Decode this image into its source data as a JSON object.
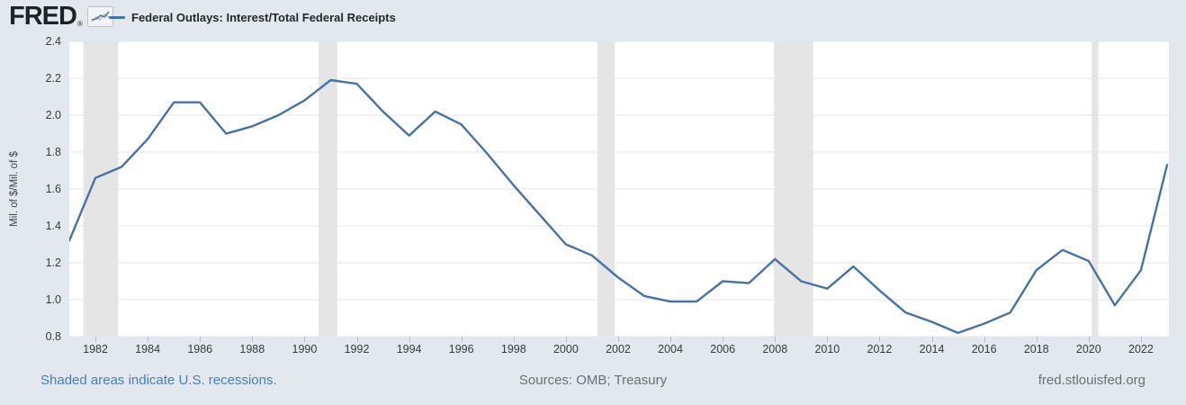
{
  "header": {
    "logo_text": "FRED",
    "registered_mark": "®",
    "legend": {
      "series_label": "Federal Outlays: Interest/Total Federal Receipts"
    }
  },
  "footer": {
    "recession_note": "Shaded areas indicate U.S. recessions.",
    "sources": "Sources: OMB; Treasury",
    "site_link": "fred.stlouisfed.org"
  },
  "colors": {
    "page_bg": "#e2e8ee",
    "plot_bg": "#ffffff",
    "line": "#4572a7",
    "grid": "#e4e4e4",
    "recession_band": "#e5e5e5",
    "footer_link": "#4a7cb8"
  },
  "chart_data": {
    "type": "line",
    "title": "Federal Outlays: Interest/Total Federal Receipts",
    "xlabel": "",
    "ylabel": "Mil. of $/Mil. of $",
    "ylim": [
      0.8,
      2.4
    ],
    "ytick_step": 0.2,
    "yticks": [
      2.4,
      2.2,
      2.0,
      1.8,
      1.6,
      1.4,
      1.2,
      1.0,
      0.8
    ],
    "xticks": [
      1982,
      1984,
      1986,
      1988,
      1990,
      1992,
      1994,
      1996,
      1998,
      2000,
      2002,
      2004,
      2006,
      2008,
      2010,
      2012,
      2014,
      2016,
      2018,
      2020,
      2022
    ],
    "x_range": [
      1981,
      2023.07
    ],
    "grid": true,
    "legend_position": "top-left",
    "x": [
      1981,
      1982,
      1983,
      1984,
      1985,
      1986,
      1987,
      1988,
      1989,
      1990,
      1991,
      1992,
      1993,
      1994,
      1995,
      1996,
      1997,
      1998,
      1999,
      2000,
      2001,
      2002,
      2003,
      2004,
      2005,
      2006,
      2007,
      2008,
      2009,
      2010,
      2011,
      2012,
      2013,
      2014,
      2015,
      2016,
      2017,
      2018,
      2019,
      2020,
      2021,
      2022,
      2023
    ],
    "values": [
      1.32,
      1.66,
      1.72,
      1.87,
      2.07,
      2.07,
      1.9,
      1.94,
      2.0,
      2.08,
      2.19,
      2.17,
      2.02,
      1.89,
      2.02,
      1.95,
      1.79,
      1.62,
      1.46,
      1.3,
      1.24,
      1.12,
      1.02,
      0.99,
      0.99,
      1.1,
      1.09,
      1.22,
      1.1,
      1.06,
      1.18,
      1.05,
      0.93,
      0.88,
      0.82,
      0.87,
      0.93,
      1.16,
      1.27,
      1.21,
      0.97,
      1.16,
      1.73
    ],
    "recession_bands": [
      [
        1981.54,
        1982.87
      ],
      [
        1990.54,
        1991.25
      ],
      [
        2001.21,
        2001.87
      ],
      [
        2007.96,
        2009.46
      ],
      [
        2020.12,
        2020.37
      ]
    ]
  }
}
